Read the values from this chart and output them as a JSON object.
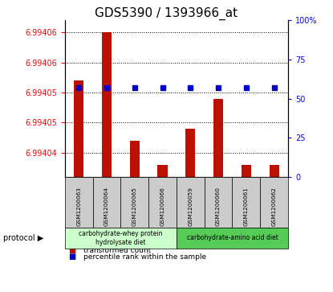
{
  "title": "GDS5390 / 1393966_at",
  "samples": [
    "GSM1200063",
    "GSM1200064",
    "GSM1200065",
    "GSM1200066",
    "GSM1200059",
    "GSM1200060",
    "GSM1200061",
    "GSM1200062"
  ],
  "transformed_count": [
    6.994052,
    6.99406,
    6.994042,
    6.994038,
    6.994044,
    6.994049,
    6.994038,
    6.994038
  ],
  "percentile_rank": [
    57,
    57,
    57,
    57,
    57,
    57,
    57,
    57
  ],
  "ymin": 6.994036,
  "ymax": 6.994062,
  "ytick_vals": [
    6.99404,
    6.994045,
    6.99405,
    6.994055,
    6.99406
  ],
  "ytick_labels": [
    "6.99404",
    "6.99405",
    "6.99405",
    "6.99406",
    "6.99406"
  ],
  "right_ytick_vals": [
    0,
    25,
    50,
    75,
    100
  ],
  "right_ytick_labels": [
    "0",
    "25",
    "50",
    "75",
    "100%"
  ],
  "bar_color": "#bb1100",
  "dot_color": "#0000cc",
  "protocol_label1": "carbohydrate-whey protein\nhydrolysate diet",
  "protocol_label2": "carbohydrate-amino acid diet",
  "protocol_box_color1": "#ccffcc",
  "protocol_box_color2": "#55cc55",
  "sample_box_color": "#cccccc",
  "legend_label_red": "transformed count",
  "legend_label_blue": "percentile rank within the sample",
  "title_fontsize": 11,
  "tick_fontsize": 7
}
